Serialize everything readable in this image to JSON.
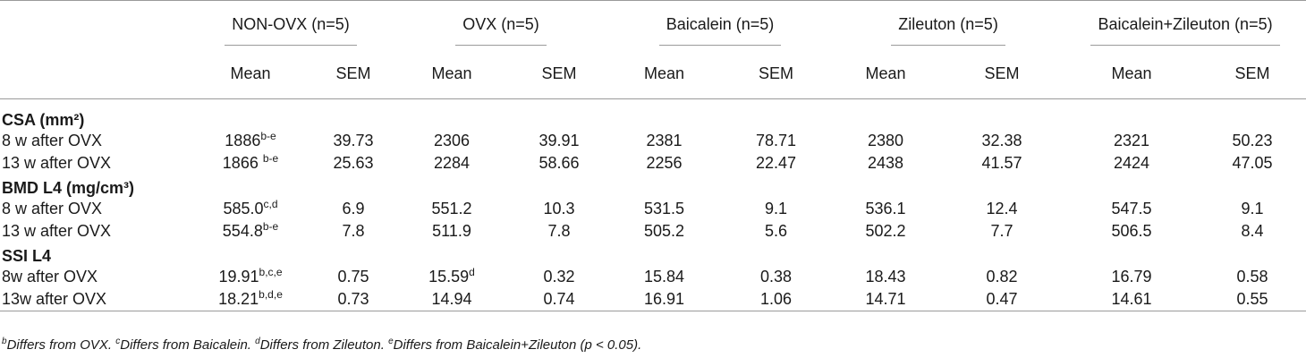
{
  "table": {
    "groups": [
      "NON-OVX (n=5)",
      "OVX (n=5)",
      "Baicalein (n=5)",
      "Zileuton (n=5)",
      "Baicalein+Zileuton (n=5)"
    ],
    "subheaders": [
      "Mean",
      "SEM"
    ],
    "sections": [
      {
        "title": "CSA (mm²)",
        "rows": [
          {
            "label": "8 w after OVX",
            "values": [
              "1886",
              "39.73",
              "2306",
              "39.91",
              "2381",
              "78.71",
              "2380",
              "32.38",
              "2321",
              "50.23"
            ],
            "sups": [
              "b-e",
              "",
              "",
              "",
              "",
              "",
              "",
              "",
              "",
              ""
            ]
          },
          {
            "label": "13 w after OVX",
            "values": [
              "1866 ",
              "25.63",
              "2284",
              "58.66",
              "2256",
              "22.47",
              "2438",
              "41.57",
              "2424",
              "47.05"
            ],
            "sups": [
              "b-e",
              "",
              "",
              "",
              "",
              "",
              "",
              "",
              "",
              ""
            ]
          }
        ]
      },
      {
        "title": "BMD L4 (mg/cm³)",
        "rows": [
          {
            "label": "8 w after OVX",
            "values": [
              "585.0",
              "6.9",
              "551.2",
              "10.3",
              "531.5",
              "9.1",
              "536.1",
              "12.4",
              "547.5",
              "9.1"
            ],
            "sups": [
              "c,d",
              "",
              "",
              "",
              "",
              "",
              "",
              "",
              "",
              ""
            ]
          },
          {
            "label": "13 w after OVX",
            "values": [
              "554.8",
              "7.8",
              "511.9",
              "7.8",
              "505.2",
              "5.6",
              "502.2",
              "7.7",
              "506.5",
              "8.4"
            ],
            "sups": [
              "b-e",
              "",
              "",
              "",
              "",
              "",
              "",
              "",
              "",
              ""
            ]
          }
        ]
      },
      {
        "title": "SSI L4",
        "rows": [
          {
            "label": "8w after OVX",
            "values": [
              "19.91",
              "0.75",
              "15.59",
              "0.32",
              "15.84",
              "0.38",
              "18.43",
              "0.82",
              "16.79",
              "0.58"
            ],
            "sups": [
              "b,c,e",
              "",
              "d",
              "",
              "",
              "",
              "",
              "",
              "",
              ""
            ]
          },
          {
            "label": "13w after OVX",
            "values": [
              "18.21",
              "0.73",
              "14.94",
              "0.74",
              "16.91",
              "1.06",
              "14.71",
              "0.47",
              "14.61",
              "0.55"
            ],
            "sups": [
              "b,d,e",
              "",
              "",
              "",
              "",
              "",
              "",
              "",
              "",
              ""
            ]
          }
        ]
      }
    ]
  },
  "footnote": {
    "parts": [
      {
        "sup": "b",
        "text": "Differs from OVX. "
      },
      {
        "sup": "c",
        "text": "Differs from Baicalein. "
      },
      {
        "sup": "d",
        "text": "Differs from Zileuton. "
      },
      {
        "sup": "e",
        "text": "Differs from Baicalein+Zileuton (p < 0.05)."
      }
    ]
  }
}
